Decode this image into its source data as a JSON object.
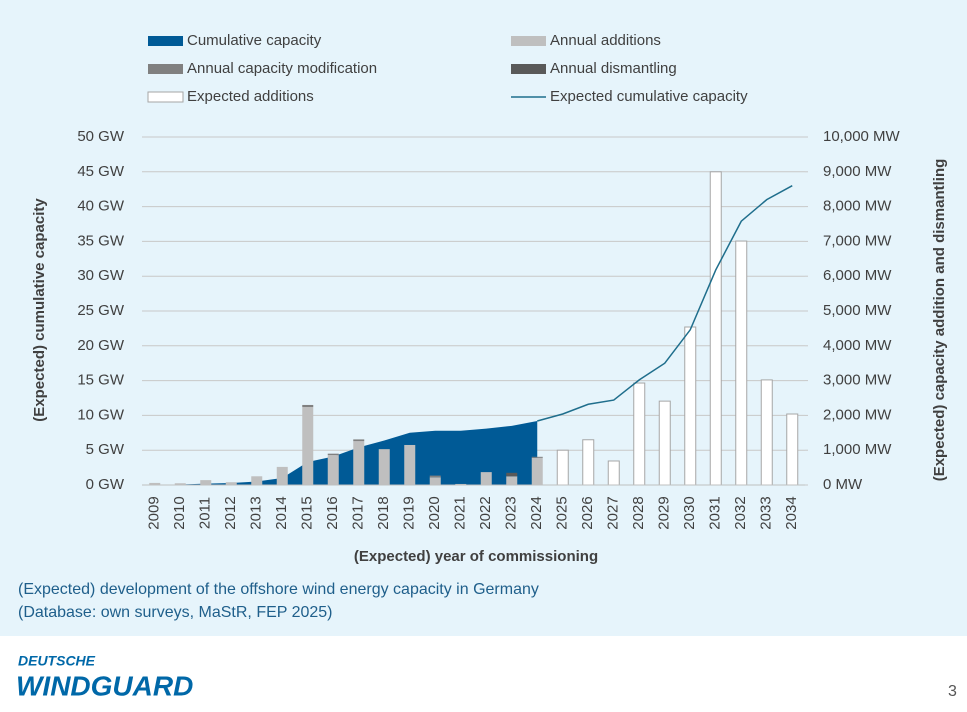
{
  "chart_data": {
    "type": "bar",
    "categories": [
      "2009",
      "2010",
      "2011",
      "2012",
      "2013",
      "2014",
      "2015",
      "2016",
      "2017",
      "2018",
      "2019",
      "2020",
      "2021",
      "2022",
      "2023",
      "2024",
      "2025",
      "2026",
      "2027",
      "2028",
      "2029",
      "2030",
      "2031",
      "2032",
      "2033",
      "2034"
    ],
    "x_label": "(Expected) year of commissioning",
    "y_label": "(Expected) cumulative capacity",
    "y2_label": "(Expected) capacity addition and dismantling",
    "ylim": [
      0,
      50
    ],
    "yticks": [
      {
        "value": 0,
        "label": "0 GW"
      },
      {
        "value": 5,
        "label": "5 GW"
      },
      {
        "value": 10,
        "label": "10 GW"
      },
      {
        "value": 15,
        "label": "15 GW"
      },
      {
        "value": 20,
        "label": "20 GW"
      },
      {
        "value": 25,
        "label": "25 GW"
      },
      {
        "value": 30,
        "label": "30 GW"
      },
      {
        "value": 35,
        "label": "35 GW"
      },
      {
        "value": 40,
        "label": "40 GW"
      },
      {
        "value": 45,
        "label": "45 GW"
      },
      {
        "value": 50,
        "label": "50 GW"
      }
    ],
    "y2lim": [
      0,
      10000
    ],
    "y2ticks": [
      {
        "value": 0,
        "label": "0 MW"
      },
      {
        "value": 1000,
        "label": "1,000 MW"
      },
      {
        "value": 2000,
        "label": "2,000 MW"
      },
      {
        "value": 3000,
        "label": "3,000 MW"
      },
      {
        "value": 4000,
        "label": "4,000 MW"
      },
      {
        "value": 5000,
        "label": "5,000 MW"
      },
      {
        "value": 6000,
        "label": "6,000 MW"
      },
      {
        "value": 7000,
        "label": "7,000 MW"
      },
      {
        "value": 8000,
        "label": "8,000 MW"
      },
      {
        "value": 9000,
        "label": "9,000 MW"
      },
      {
        "value": 10000,
        "label": "10,000 MW"
      }
    ],
    "grid": true,
    "series": [
      {
        "name": "Cumulative capacity",
        "type": "area",
        "color": "#005a96",
        "values": [
          0.03,
          0.08,
          0.19,
          0.28,
          0.5,
          1.0,
          3.3,
          4.1,
          5.4,
          6.4,
          7.5,
          7.8,
          7.8,
          8.1,
          8.5,
          9.2,
          null,
          null,
          null,
          null,
          null,
          null,
          null,
          null,
          null,
          null
        ]
      },
      {
        "name": "Annual additions",
        "type": "bar",
        "axis": "y2",
        "color": "#bfbfbf",
        "values": [
          60,
          50,
          140,
          80,
          250,
          520,
          2240,
          860,
          1260,
          1030,
          1150,
          220,
          30,
          370,
          250,
          780,
          null,
          null,
          null,
          null,
          null,
          null,
          null,
          null,
          null,
          null
        ]
      },
      {
        "name": "Annual capacity modification",
        "type": "bar",
        "axis": "y2",
        "color": "#808080",
        "values": [
          null,
          null,
          null,
          null,
          null,
          null,
          60,
          40,
          50,
          null,
          null,
          50,
          null,
          null,
          null,
          30,
          null,
          null,
          null,
          null,
          null,
          null,
          null,
          null,
          null,
          null
        ]
      },
      {
        "name": "Annual dismantling",
        "type": "bar",
        "axis": "y2",
        "color": "#595959",
        "values": [
          null,
          null,
          null,
          null,
          null,
          null,
          null,
          null,
          null,
          null,
          null,
          null,
          null,
          null,
          100,
          null,
          null,
          null,
          null,
          null,
          null,
          null,
          null,
          null,
          null,
          null
        ]
      },
      {
        "name": "Expected additions",
        "type": "bar",
        "axis": "y2",
        "color": "#ffffff",
        "values": [
          null,
          null,
          null,
          null,
          null,
          null,
          null,
          null,
          null,
          null,
          null,
          null,
          null,
          null,
          null,
          null,
          1000,
          1300,
          690,
          2930,
          2410,
          4540,
          9000,
          7010,
          3020,
          2040
        ]
      },
      {
        "name": "Expected cumulative capacity",
        "type": "line",
        "color": "#1f6e8c",
        "values": [
          null,
          null,
          null,
          null,
          null,
          null,
          null,
          null,
          null,
          null,
          null,
          null,
          null,
          null,
          null,
          9.2,
          10.2,
          11.6,
          12.2,
          15.1,
          17.5,
          22.3,
          30.9,
          37.9,
          41.0,
          43.0
        ]
      }
    ]
  },
  "caption": [
    "(Expected) development of the offshore wind energy capacity in Germany",
    "(Database: own surveys, MaStR, FEP 2025)"
  ],
  "logo": [
    "DEUTSCHE",
    "WINDGUARD"
  ],
  "page_number": "3"
}
